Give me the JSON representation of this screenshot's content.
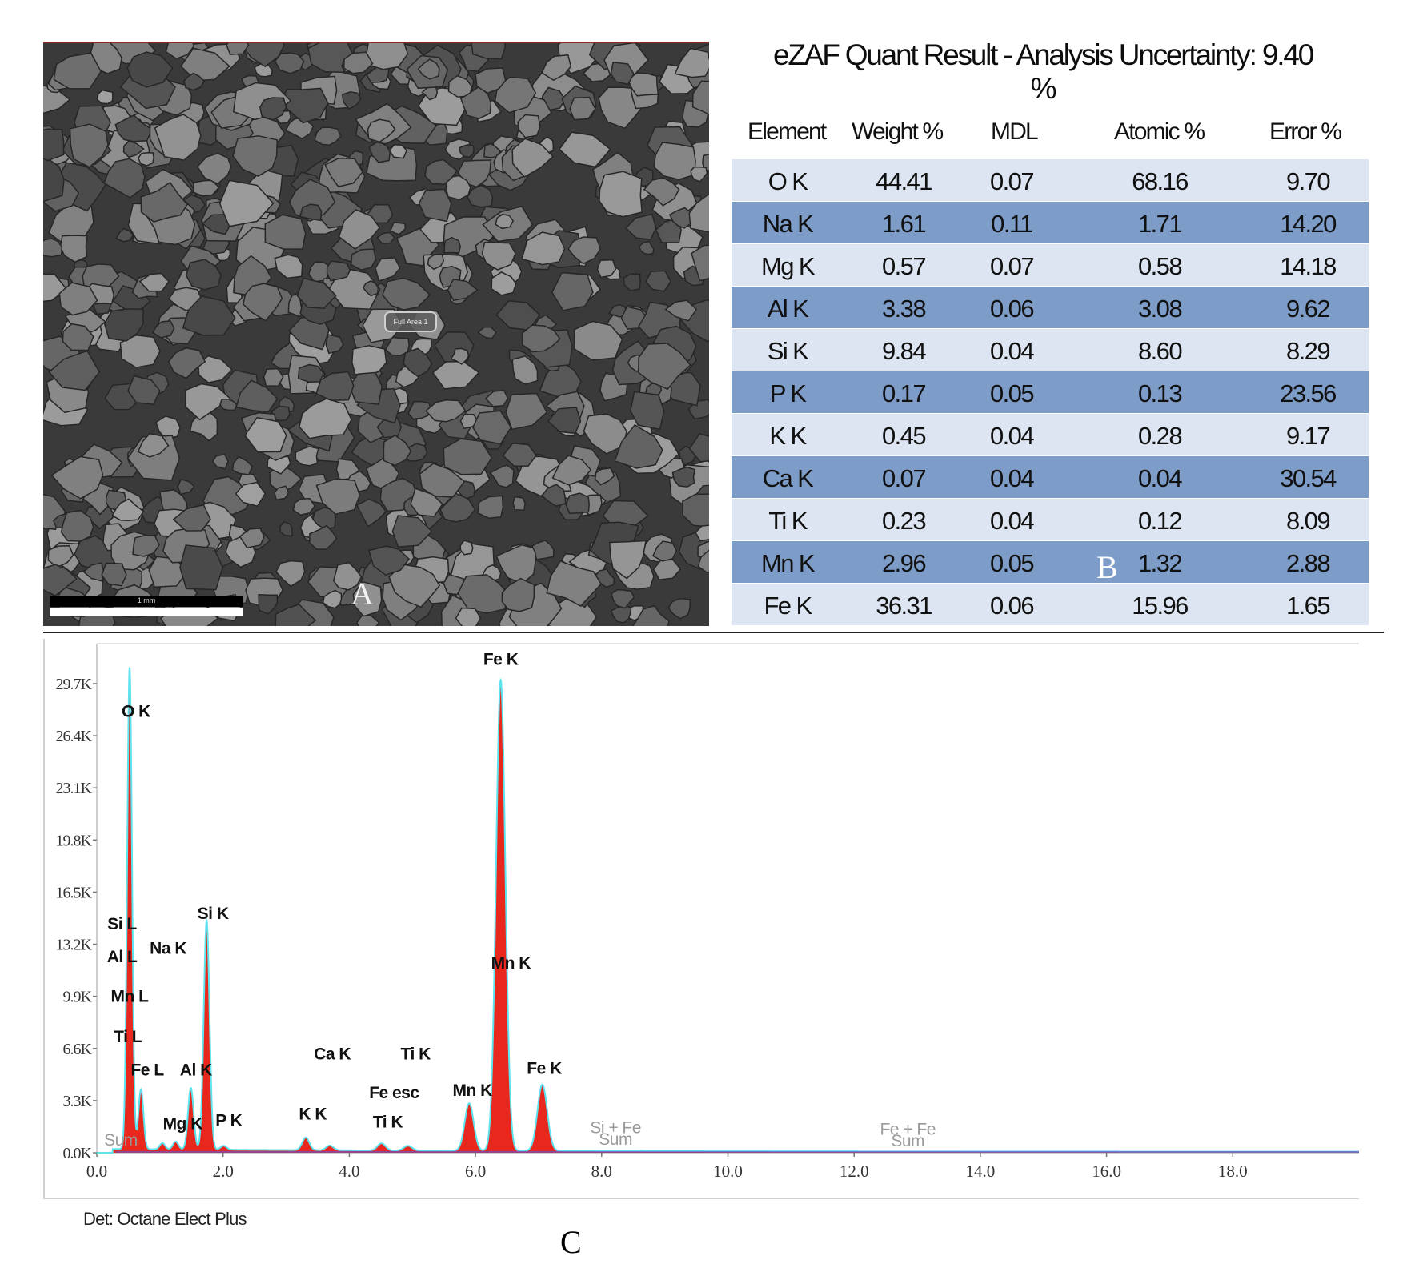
{
  "panel_letters": {
    "a": "A",
    "b": "B",
    "c": "C"
  },
  "sem": {
    "area_label": "Full Area 1",
    "scale_text": "1 mm"
  },
  "ezaf": {
    "title_line1": "eZAF Quant Result - Analysis Uncertainty: 9.40",
    "title_line2": "%",
    "headers": [
      "Element",
      "Weight %",
      "MDL",
      "Atomic %",
      "Error %"
    ],
    "rows": [
      [
        "O  K",
        "44.41",
        "0.07",
        "68.16",
        "9.70"
      ],
      [
        "Na K",
        "1.61",
        "0.11",
        "1.71",
        "14.20"
      ],
      [
        "Mg K",
        "0.57",
        "0.07",
        "0.58",
        "14.18"
      ],
      [
        "Al K",
        "3.38",
        "0.06",
        "3.08",
        "9.62"
      ],
      [
        "Si K",
        "9.84",
        "0.04",
        "8.60",
        "8.29"
      ],
      [
        "P  K",
        "0.17",
        "0.05",
        "0.13",
        "23.56"
      ],
      [
        "K  K",
        "0.45",
        "0.04",
        "0.28",
        "9.17"
      ],
      [
        "Ca K",
        "0.07",
        "0.04",
        "0.04",
        "30.54"
      ],
      [
        "Ti K",
        "0.23",
        "0.04",
        "0.12",
        "8.09"
      ],
      [
        "Mn K",
        "2.96",
        "0.05",
        "1.32",
        "2.88"
      ],
      [
        "Fe K",
        "36.31",
        "0.06",
        "15.96",
        "1.65"
      ]
    ]
  },
  "detector_text": "Det: Octane Elect Plus",
  "colors": {
    "fill": "#e8271d",
    "outline": "#5fe3ee",
    "baseline": "#6a55c9",
    "row_light": "#dce5f1",
    "row_dark": "#7d9cc8"
  },
  "chart_data": {
    "type": "area",
    "xlim": [
      0,
      20
    ],
    "ylim": [
      0,
      29700
    ],
    "x_ticks": [
      0,
      2,
      4,
      6,
      8,
      10,
      12,
      14,
      16,
      18
    ],
    "x_tick_labels": [
      "0.0",
      "2.0",
      "4.0",
      "6.0",
      "8.0",
      "10.0",
      "12.0",
      "14.0",
      "16.0",
      "18.0"
    ],
    "y_ticks": [
      0,
      3300,
      6600,
      9900,
      13200,
      16500,
      19800,
      23100,
      26400,
      29700
    ],
    "y_tick_labels": [
      "0.0K",
      "3.3K",
      "6.6K",
      "9.9K",
      "13.2K",
      "16.5K",
      "19.8K",
      "23.1K",
      "26.4K",
      "29.7K"
    ],
    "peaks": [
      {
        "x": 0.52,
        "counts": 30500
      },
      {
        "x": 0.7,
        "counts": 3800
      },
      {
        "x": 1.04,
        "counts": 400
      },
      {
        "x": 1.25,
        "counts": 500
      },
      {
        "x": 1.49,
        "counts": 3900
      },
      {
        "x": 1.74,
        "counts": 14500
      },
      {
        "x": 2.01,
        "counts": 250
      },
      {
        "x": 3.31,
        "counts": 800
      },
      {
        "x": 3.69,
        "counts": 300
      },
      {
        "x": 4.51,
        "counts": 450
      },
      {
        "x": 4.93,
        "counts": 300
      },
      {
        "x": 5.9,
        "counts": 3000
      },
      {
        "x": 6.4,
        "counts": 29800
      },
      {
        "x": 7.06,
        "counts": 4200
      }
    ],
    "annotations": [
      {
        "text": "Fe K",
        "x": 6.4,
        "counts": 30900
      },
      {
        "text": "O  K",
        "x": 0.62,
        "counts": 27600
      },
      {
        "text": "Si L",
        "x": 0.4,
        "counts": 14150
      },
      {
        "text": "Si K",
        "x": 1.84,
        "counts": 14800
      },
      {
        "text": "Al L",
        "x": 0.4,
        "counts": 12050
      },
      {
        "text": "Na K",
        "x": 1.13,
        "counts": 12600
      },
      {
        "text": "Mn K",
        "x": 6.56,
        "counts": 11650
      },
      {
        "text": "Mn L",
        "x": 0.52,
        "counts": 9550
      },
      {
        "text": "Ti L",
        "x": 0.49,
        "counts": 7000
      },
      {
        "text": "Ca K",
        "x": 3.73,
        "counts": 5900
      },
      {
        "text": "Ti K",
        "x": 5.05,
        "counts": 5900
      },
      {
        "text": "Fe L",
        "x": 0.8,
        "counts": 4900
      },
      {
        "text": "Al K",
        "x": 1.57,
        "counts": 4900
      },
      {
        "text": "Fe K",
        "x": 7.09,
        "counts": 5000
      },
      {
        "text": "Fe  esc",
        "x": 4.71,
        "counts": 3450
      },
      {
        "text": "Mn K",
        "x": 5.95,
        "counts": 3600
      },
      {
        "text": "Mg K",
        "x": 1.36,
        "counts": 1500
      },
      {
        "text": "P  K",
        "x": 2.09,
        "counts": 1700
      },
      {
        "text": "K  K",
        "x": 3.42,
        "counts": 2100
      },
      {
        "text": "Ti K",
        "x": 4.61,
        "counts": 1600
      },
      {
        "text": "Si + Fe",
        "x": 8.22,
        "counts": 1250,
        "muted": true
      },
      {
        "text": "Sum",
        "x": 8.22,
        "counts": 500,
        "muted": true
      },
      {
        "text": "Fe + Fe",
        "x": 12.85,
        "counts": 1150,
        "muted": true
      },
      {
        "text": "Sum",
        "x": 12.85,
        "counts": 400,
        "muted": true
      },
      {
        "text": "Sum",
        "x": 0.38,
        "counts": 450,
        "muted": true
      }
    ]
  }
}
